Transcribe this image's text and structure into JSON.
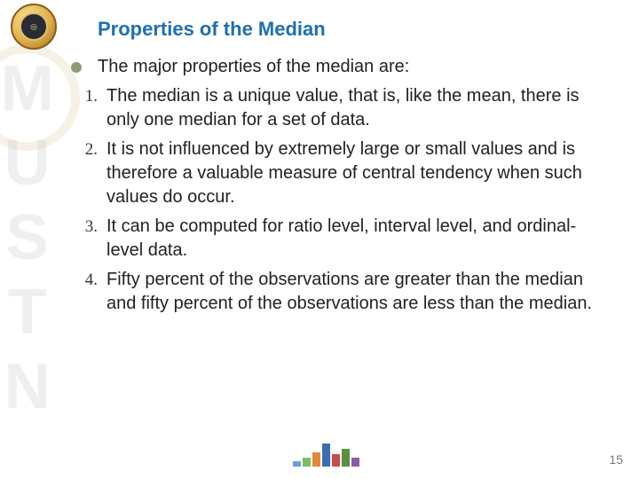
{
  "watermark": "MUSTN",
  "title": "Properties of the Median",
  "intro": "The major properties of the median are:",
  "items": [
    {
      "n": "1.",
      "text": "The median is a unique value, that is, like the mean, there is only one median for a set of data."
    },
    {
      "n": "2.",
      "text": "It is not influenced by extremely large or small values and is therefore a valuable measure of central tendency when such values do occur."
    },
    {
      "n": "3.",
      "text": "It can be computed for ratio level, interval level, and ordinal-level data."
    },
    {
      "n": "4.",
      "text": "Fifty percent of the observations are greater than the median and fifty percent of the observations are less than the median."
    }
  ],
  "pageNumber": "15",
  "footerChart": {
    "bars": [
      {
        "h": 6,
        "c": "#6aa0d8"
      },
      {
        "h": 10,
        "c": "#7bbf5e"
      },
      {
        "h": 16,
        "c": "#e08a3a"
      },
      {
        "h": 26,
        "c": "#3b6db5"
      },
      {
        "h": 14,
        "c": "#c94b4b"
      },
      {
        "h": 20,
        "c": "#5a8f3f"
      },
      {
        "h": 10,
        "c": "#8a5aa8"
      }
    ]
  },
  "colors": {
    "titleColor": "#1f6fb0",
    "bulletColor": "#8f9b73",
    "textColor": "#222222",
    "pageNumColor": "#7a7a7a"
  }
}
